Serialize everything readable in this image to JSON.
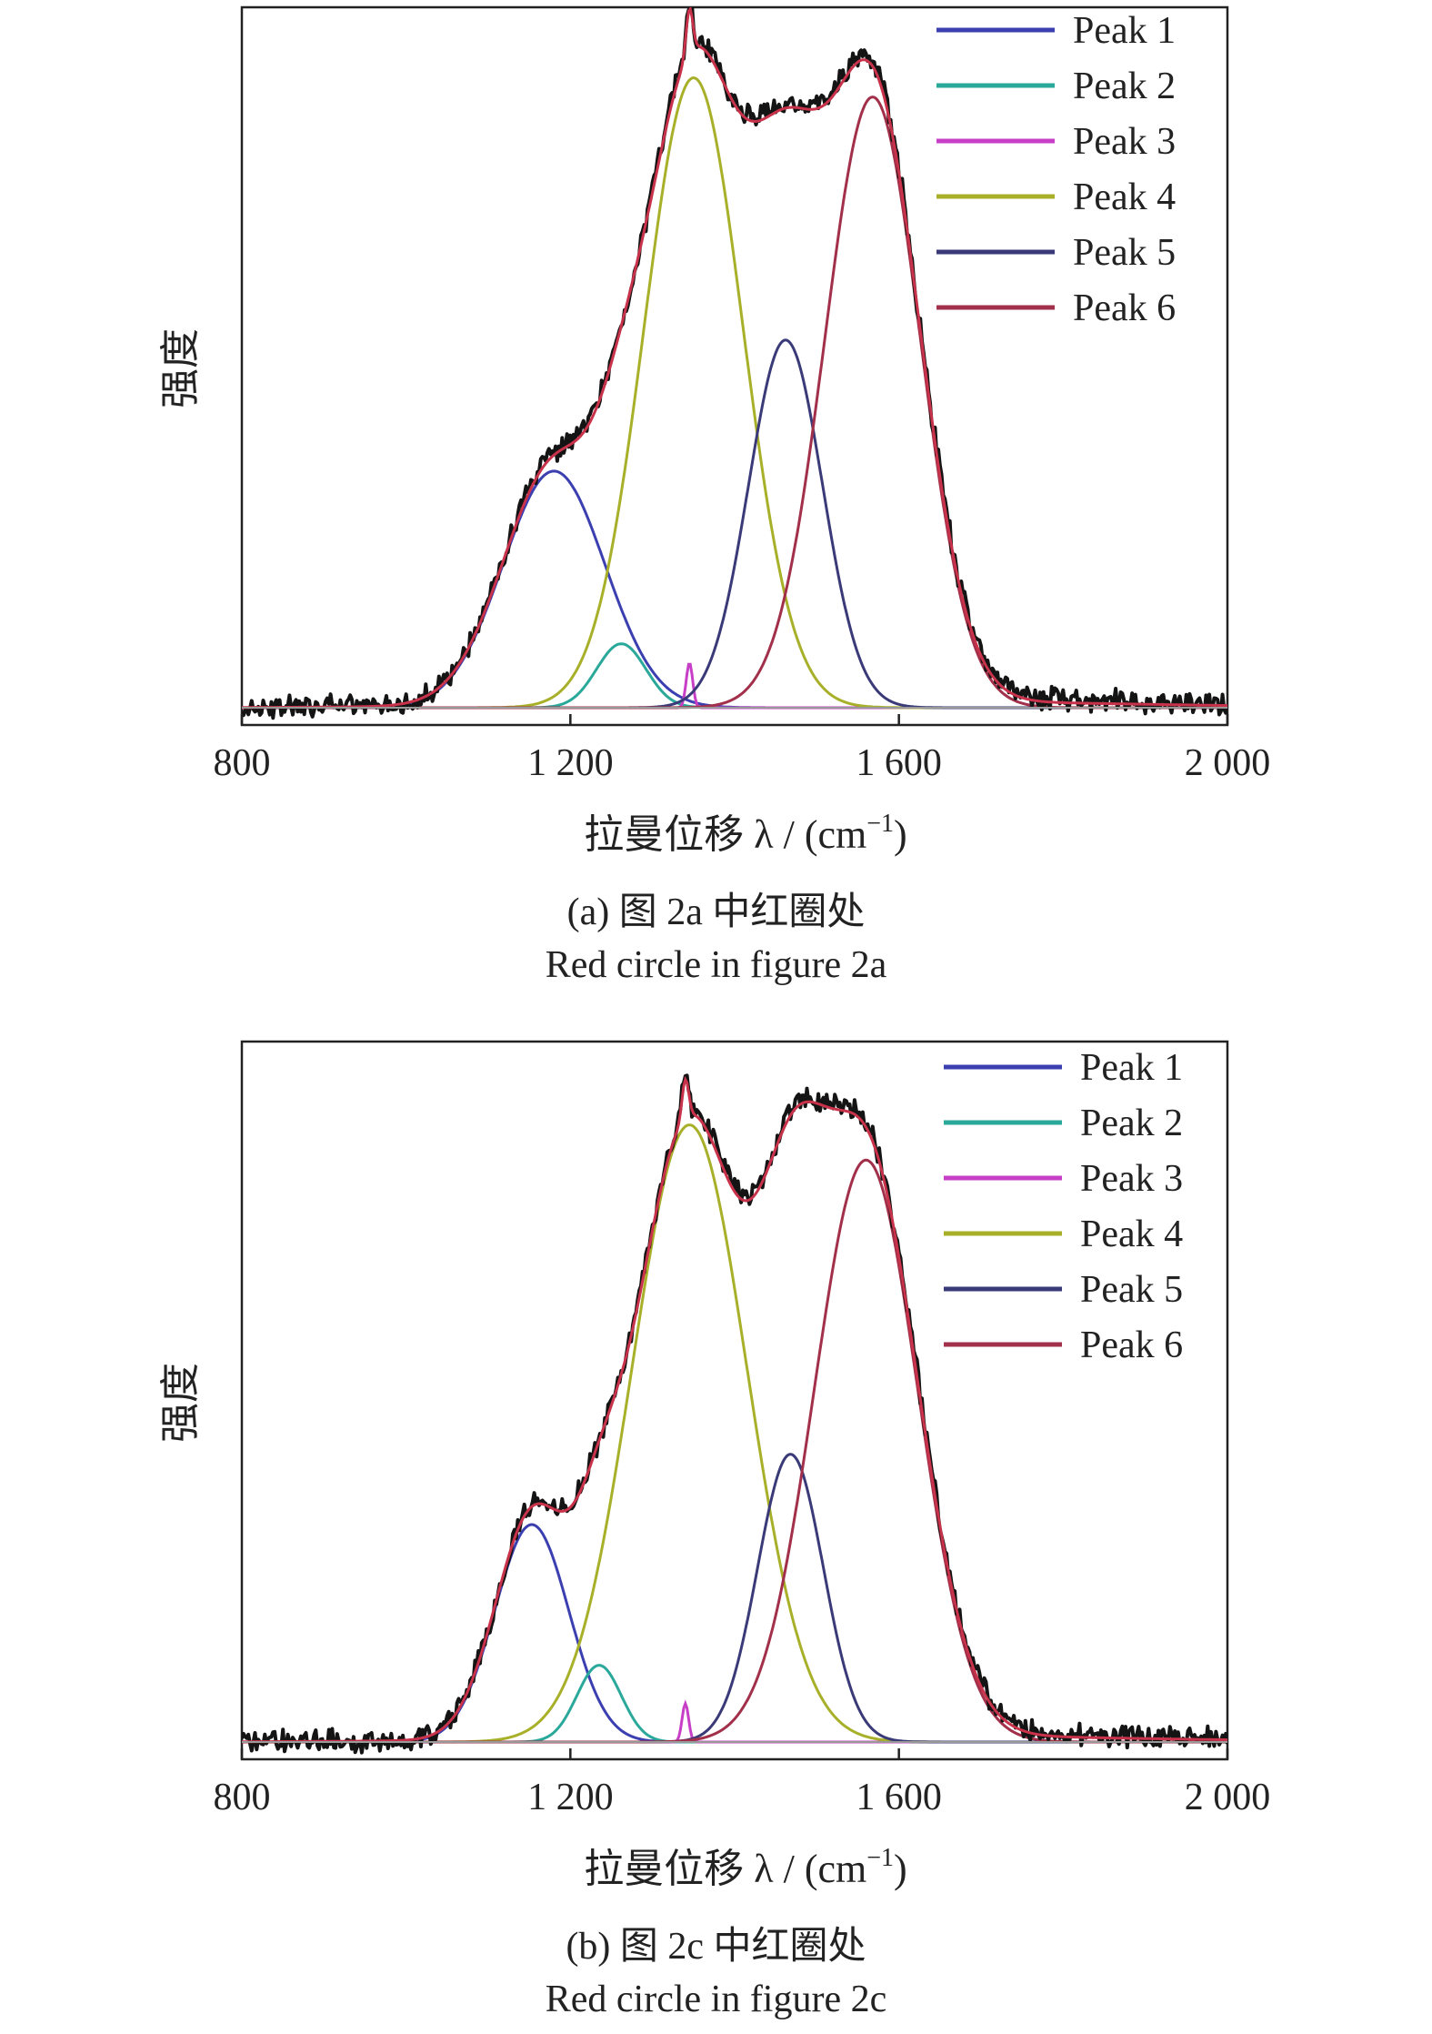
{
  "chart_data": [
    {
      "type": "line",
      "panel": "a",
      "caption_cn": "(a) 图 2a 中红圈处",
      "caption_en": "Red circle in figure 2a",
      "xlabel_main": "拉曼位移 λ / (cm",
      "xlabel_sup": "−1",
      "xlabel_tail": ")",
      "ylabel": "强度",
      "xlim": [
        800,
        2000
      ],
      "ylim": [
        0,
        1
      ],
      "xticks": [
        800,
        1200,
        1600,
        2000
      ],
      "xtick_labels": [
        "800",
        "1 200",
        "1 600",
        "2 000"
      ],
      "grid": false,
      "legend_position": "top-right",
      "peaks": [
        {
          "name": "Peak 1",
          "color": "#3b3fb0",
          "center": 1180,
          "amplitude": 0.37,
          "width": 62
        },
        {
          "name": "Peak 2",
          "color": "#2aa89a",
          "center": 1262,
          "amplitude": 0.1,
          "width": 30
        },
        {
          "name": "Peak 3",
          "color": "#c63fc6",
          "center": 1345,
          "amplitude": 0.07,
          "width": 4
        },
        {
          "name": "Peak 4",
          "color": "#a8b02a",
          "center": 1350,
          "amplitude": 0.985,
          "width": 60
        },
        {
          "name": "Peak 5",
          "color": "#3a3a78",
          "center": 1462,
          "amplitude": 0.575,
          "width": 45
        },
        {
          "name": "Peak 6",
          "color": "#a2304a",
          "center": 1568,
          "amplitude": 0.955,
          "width": 58
        }
      ]
    },
    {
      "type": "line",
      "panel": "b",
      "caption_cn": "(b) 图 2c 中红圈处",
      "caption_en": "Red circle in figure 2c",
      "xlabel_main": "拉曼位移 λ / (cm",
      "xlabel_sup": "−1",
      "xlabel_tail": ")",
      "ylabel": "强度",
      "xlim": [
        800,
        2000
      ],
      "ylim": [
        0,
        1
      ],
      "xticks": [
        800,
        1200,
        1600,
        2000
      ],
      "xtick_labels": [
        "800",
        "1 200",
        "1 600",
        "2 000"
      ],
      "grid": false,
      "legend_position": "top-right",
      "peaks": [
        {
          "name": "Peak 1",
          "color": "#3b3fb0",
          "center": 1153,
          "amplitude": 0.34,
          "width": 45
        },
        {
          "name": "Peak 2",
          "color": "#2aa89a",
          "center": 1235,
          "amplitude": 0.12,
          "width": 27
        },
        {
          "name": "Peak 3",
          "color": "#c63fc6",
          "center": 1340,
          "amplitude": 0.06,
          "width": 4
        },
        {
          "name": "Peak 4",
          "color": "#a8b02a",
          "center": 1345,
          "amplitude": 0.965,
          "width": 70
        },
        {
          "name": "Peak 5",
          "color": "#3a3a78",
          "center": 1468,
          "amplitude": 0.45,
          "width": 40
        },
        {
          "name": "Peak 6",
          "color": "#a2304a",
          "center": 1560,
          "amplitude": 0.91,
          "width": 63
        }
      ]
    }
  ]
}
